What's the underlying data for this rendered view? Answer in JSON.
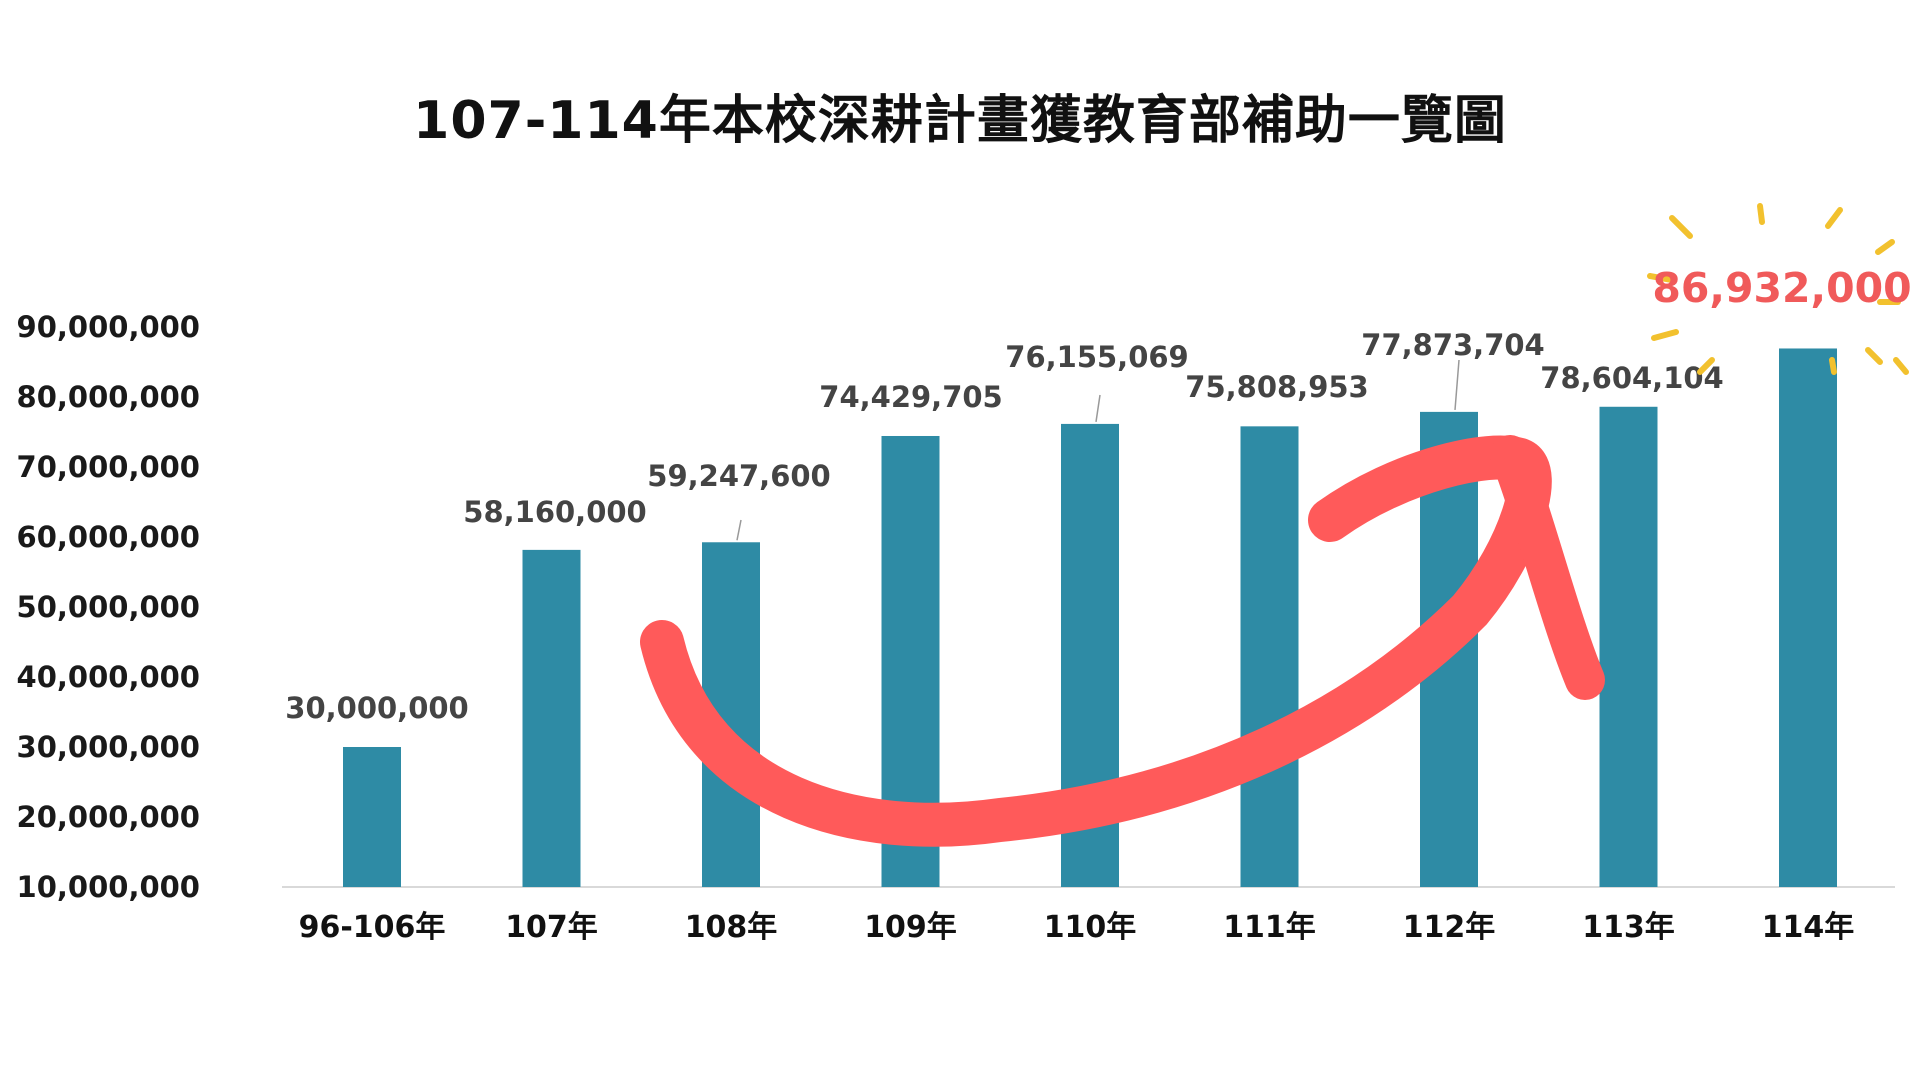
{
  "chart_data": {
    "type": "bar",
    "title": "107-114年本校深耕計畫獲教育部補助一覽圖",
    "categories": [
      "96-106年",
      "107年",
      "108年",
      "109年",
      "110年",
      "111年",
      "112年",
      "113年",
      "114年"
    ],
    "values": [
      30000000,
      58160000,
      59247600,
      74429705,
      76155069,
      75808953,
      77873704,
      78604104,
      86932000
    ],
    "data_labels": [
      "30,000,000",
      "58,160,000",
      "59,247,600",
      "74,429,705",
      "76,155,069",
      "75,808,953",
      "77,873,704",
      "78,604,104",
      "86,932,000"
    ],
    "highlight_index": 8,
    "yticks": [
      10000000,
      20000000,
      30000000,
      40000000,
      50000000,
      60000000,
      70000000,
      80000000,
      90000000
    ],
    "ytick_labels": [
      "10,000,000",
      "20,000,000",
      "30,000,000",
      "40,000,000",
      "50,000,000",
      "60,000,000",
      "70,000,000",
      "80,000,000",
      "90,000,000"
    ],
    "ylim": [
      10000000,
      90000000
    ],
    "grid": false,
    "legend": "none",
    "xlabel": "",
    "ylabel": "",
    "bar_color": "#2E8BA5",
    "highlight_color": "#F05A5A",
    "arrow_color": "#FF5A5A",
    "burst_color": "#F2C12E"
  }
}
